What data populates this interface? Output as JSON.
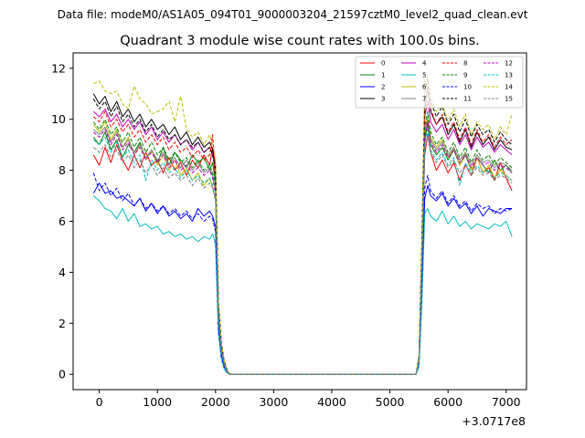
{
  "figure": {
    "suptitle": "Data file: modeM0/AS1A05_094T01_9000003204_21597cztM0_level2_quad_clean.evt"
  },
  "chart_data": {
    "type": "line",
    "title": "Quadrant 3 module wise count rates with 100.0s bins.",
    "xlabel": "",
    "ylabel": "",
    "x_offset_label": "+3.0717e8",
    "xlim": [
      -450,
      7350
    ],
    "ylim": [
      -0.6,
      12.6
    ],
    "xticks": [
      0,
      1000,
      2000,
      3000,
      4000,
      5000,
      6000,
      7000
    ],
    "yticks": [
      0,
      2,
      4,
      6,
      8,
      10,
      12
    ],
    "legend_position": "top-right",
    "x": [
      -100,
      0,
      100,
      200,
      300,
      400,
      500,
      600,
      700,
      800,
      900,
      1000,
      1100,
      1200,
      1300,
      1400,
      1500,
      1600,
      1700,
      1800,
      1900,
      1950,
      2000,
      2050,
      2100,
      2150,
      2200,
      2250,
      2300,
      2500,
      3000,
      3500,
      4000,
      4500,
      5000,
      5450,
      5500,
      5550,
      5600,
      5650,
      5700,
      5800,
      5900,
      6000,
      6100,
      6200,
      6300,
      6400,
      6500,
      6600,
      6700,
      6800,
      6900,
      7000,
      7100
    ],
    "series": [
      {
        "name": "0",
        "color": "#ff0000",
        "dash": "solid",
        "values": [
          8.6,
          8.2,
          8.9,
          8.3,
          9.0,
          8.4,
          8.0,
          8.6,
          8.1,
          8.7,
          8.2,
          8.4,
          7.9,
          8.5,
          8.0,
          8.3,
          7.8,
          8.4,
          8.1,
          8.6,
          8.2,
          8.9,
          7.6,
          2.6,
          1.1,
          0.5,
          0.15,
          0.0,
          0.0,
          0.0,
          0.0,
          0.0,
          0.0,
          0.0,
          0.0,
          0.0,
          0.5,
          4.2,
          8.6,
          9.4,
          8.7,
          8.0,
          8.4,
          7.9,
          8.3,
          7.6,
          8.2,
          7.8,
          8.5,
          7.9,
          8.1,
          7.6,
          8.3,
          7.7,
          7.2
        ]
      },
      {
        "name": "1",
        "color": "#008000",
        "dash": "solid",
        "values": [
          9.3,
          9.0,
          9.5,
          8.8,
          9.2,
          8.5,
          9.0,
          8.7,
          9.1,
          8.4,
          8.8,
          8.3,
          8.9,
          8.2,
          8.7,
          8.4,
          8.1,
          8.6,
          8.3,
          8.5,
          8.0,
          8.3,
          7.5,
          2.3,
          1.0,
          0.4,
          0.1,
          0.0,
          0.0,
          0.0,
          0.0,
          0.0,
          0.0,
          0.0,
          0.0,
          0.0,
          0.6,
          4.5,
          9.2,
          9.8,
          9.0,
          8.6,
          8.9,
          8.4,
          8.8,
          8.2,
          8.6,
          8.0,
          8.5,
          8.2,
          7.9,
          8.4,
          8.0,
          8.2,
          7.9
        ]
      },
      {
        "name": "2",
        "color": "#0000ff",
        "dash": "solid",
        "values": [
          7.1,
          7.5,
          7.1,
          7.2,
          6.9,
          7.0,
          6.8,
          6.6,
          6.9,
          6.4,
          6.7,
          6.3,
          6.6,
          6.2,
          6.4,
          6.1,
          6.3,
          6.0,
          6.5,
          6.2,
          6.4,
          6.2,
          5.8,
          1.9,
          0.8,
          0.3,
          0.1,
          0.0,
          0.0,
          0.0,
          0.0,
          0.0,
          0.0,
          0.0,
          0.0,
          0.0,
          0.4,
          3.2,
          6.9,
          7.4,
          7.0,
          6.8,
          7.1,
          6.6,
          6.9,
          6.5,
          6.7,
          6.3,
          6.6,
          6.2,
          6.5,
          6.4,
          6.3,
          6.5,
          6.5
        ]
      },
      {
        "name": "3",
        "color": "#000000",
        "dash": "solid",
        "values": [
          11.0,
          10.6,
          10.9,
          10.3,
          10.7,
          10.1,
          10.4,
          9.9,
          10.2,
          9.7,
          10.0,
          9.6,
          9.8,
          9.4,
          9.7,
          9.2,
          9.5,
          9.0,
          9.3,
          8.9,
          9.1,
          8.8,
          8.2,
          2.8,
          1.2,
          0.5,
          0.15,
          0.0,
          0.0,
          0.0,
          0.0,
          0.0,
          0.0,
          0.0,
          0.0,
          0.0,
          0.7,
          5.0,
          10.5,
          11.2,
          10.3,
          9.8,
          10.1,
          9.4,
          9.8,
          9.1,
          9.6,
          8.9,
          9.5,
          9.0,
          9.3,
          8.8,
          9.2,
          8.9,
          8.8
        ]
      },
      {
        "name": "4",
        "color": "#bf00bf",
        "dash": "solid",
        "values": [
          10.3,
          10.1,
          10.4,
          9.9,
          10.2,
          9.7,
          10.0,
          9.6,
          9.9,
          9.4,
          9.7,
          9.2,
          9.5,
          9.1,
          9.4,
          9.0,
          9.2,
          8.8,
          9.1,
          8.7,
          8.9,
          8.6,
          8.0,
          2.7,
          1.1,
          0.5,
          0.15,
          0.0,
          0.0,
          0.0,
          0.0,
          0.0,
          0.0,
          0.0,
          0.0,
          0.0,
          0.7,
          4.8,
          10.1,
          10.7,
          9.9,
          9.5,
          9.8,
          9.2,
          9.6,
          9.0,
          9.4,
          8.8,
          9.3,
          8.9,
          9.1,
          8.7,
          9.0,
          8.8,
          8.6
        ]
      },
      {
        "name": "5",
        "color": "#00bfbf",
        "dash": "solid",
        "values": [
          7.0,
          6.8,
          6.5,
          6.4,
          6.1,
          6.5,
          6.0,
          6.3,
          5.8,
          5.9,
          5.7,
          5.8,
          5.5,
          5.6,
          5.4,
          5.5,
          5.3,
          5.4,
          5.2,
          5.4,
          5.3,
          5.5,
          5.1,
          1.6,
          0.6,
          0.2,
          0.05,
          0.0,
          0.0,
          0.0,
          0.0,
          0.0,
          0.0,
          0.0,
          0.0,
          0.0,
          0.3,
          2.8,
          6.3,
          6.5,
          6.2,
          6.0,
          6.4,
          5.9,
          6.2,
          5.8,
          6.0,
          5.7,
          5.9,
          5.8,
          5.7,
          5.9,
          5.8,
          6.0,
          5.4
        ]
      },
      {
        "name": "6",
        "color": "#bfbf00",
        "dash": "solid",
        "values": [
          9.8,
          9.5,
          9.9,
          9.2,
          9.6,
          8.9,
          9.3,
          8.6,
          9.0,
          8.4,
          8.8,
          8.2,
          8.6,
          8.0,
          8.4,
          7.8,
          8.1,
          7.6,
          7.9,
          7.4,
          7.7,
          7.3,
          6.9,
          2.4,
          1.0,
          0.4,
          0.1,
          0.0,
          0.0,
          0.0,
          0.0,
          0.0,
          0.0,
          0.0,
          0.0,
          0.0,
          0.6,
          4.4,
          9.6,
          10.1,
          9.3,
          8.9,
          9.2,
          8.5,
          8.9,
          8.2,
          8.7,
          8.0,
          8.5,
          7.9,
          8.2,
          7.7,
          8.0,
          7.8,
          7.6
        ]
      },
      {
        "name": "7",
        "color": "#808080",
        "dash": "solid",
        "values": [
          9.6,
          9.4,
          9.7,
          9.1,
          9.5,
          8.9,
          9.2,
          8.7,
          9.0,
          8.5,
          8.8,
          8.4,
          8.7,
          8.2,
          8.5,
          8.1,
          8.4,
          8.0,
          8.3,
          7.9,
          8.1,
          7.8,
          7.2,
          2.5,
          1.0,
          0.4,
          0.1,
          0.0,
          0.0,
          0.0,
          0.0,
          0.0,
          0.0,
          0.0,
          0.0,
          0.0,
          0.6,
          4.6,
          9.4,
          10.0,
          9.2,
          8.8,
          9.1,
          8.6,
          8.9,
          8.4,
          8.7,
          8.2,
          8.6,
          8.3,
          8.4,
          8.1,
          8.3,
          8.2,
          8.0
        ]
      },
      {
        "name": "8",
        "color": "#ff0000",
        "dash": "dashed",
        "values": [
          10.1,
          9.9,
          10.3,
          9.7,
          10.0,
          9.5,
          9.8,
          9.3,
          9.6,
          9.1,
          9.4,
          9.0,
          9.3,
          8.8,
          9.1,
          8.7,
          8.9,
          8.5,
          8.8,
          8.4,
          8.6,
          9.4,
          7.8,
          2.7,
          1.1,
          0.5,
          0.15,
          0.0,
          0.0,
          0.0,
          0.0,
          0.0,
          0.0,
          0.0,
          0.0,
          0.0,
          0.7,
          4.9,
          10.2,
          11.3,
          10.4,
          9.8,
          10.2,
          9.5,
          9.9,
          9.2,
          9.7,
          9.0,
          9.6,
          9.1,
          9.4,
          8.9,
          9.3,
          9.0,
          9.2
        ]
      },
      {
        "name": "9",
        "color": "#008000",
        "dash": "dashed",
        "values": [
          9.9,
          9.6,
          10.0,
          9.4,
          9.7,
          9.1,
          9.5,
          8.9,
          9.3,
          8.7,
          9.1,
          8.6,
          8.9,
          8.4,
          8.7,
          8.3,
          8.5,
          8.1,
          8.4,
          8.0,
          8.2,
          7.9,
          7.4,
          2.5,
          1.0,
          0.4,
          0.1,
          0.0,
          0.0,
          0.0,
          0.0,
          0.0,
          0.0,
          0.0,
          0.0,
          0.0,
          0.6,
          4.6,
          9.7,
          10.3,
          9.5,
          9.0,
          9.3,
          8.7,
          9.1,
          8.5,
          8.9,
          8.3,
          8.8,
          8.4,
          8.6,
          8.2,
          8.5,
          8.3,
          8.1
        ]
      },
      {
        "name": "10",
        "color": "#0000ff",
        "dash": "dashed",
        "values": [
          7.9,
          7.2,
          7.5,
          7.0,
          7.3,
          6.8,
          7.1,
          6.6,
          6.9,
          6.5,
          6.7,
          6.4,
          6.6,
          6.3,
          6.5,
          6.2,
          6.4,
          6.1,
          6.3,
          6.0,
          6.2,
          6.1,
          5.6,
          1.8,
          0.7,
          0.3,
          0.08,
          0.0,
          0.0,
          0.0,
          0.0,
          0.0,
          0.0,
          0.0,
          0.0,
          0.0,
          0.4,
          3.4,
          7.3,
          7.8,
          7.2,
          6.9,
          7.2,
          6.7,
          7.0,
          6.6,
          6.8,
          6.4,
          6.7,
          6.5,
          6.6,
          6.3,
          6.5,
          6.4,
          6.5
        ]
      },
      {
        "name": "11",
        "color": "#000000",
        "dash": "dashed",
        "values": [
          10.8,
          10.4,
          10.7,
          10.1,
          10.5,
          9.9,
          10.2,
          9.7,
          10.0,
          9.5,
          9.8,
          9.3,
          9.6,
          9.2,
          9.4,
          9.0,
          9.2,
          8.9,
          9.1,
          8.7,
          8.9,
          8.6,
          8.0,
          2.8,
          1.2,
          0.5,
          0.15,
          0.0,
          0.0,
          0.0,
          0.0,
          0.0,
          0.0,
          0.0,
          0.0,
          0.0,
          0.7,
          5.2,
          11.0,
          11.6,
          10.7,
          10.1,
          10.5,
          9.8,
          10.2,
          9.5,
          10.0,
          9.3,
          9.8,
          9.4,
          9.6,
          9.1,
          9.5,
          9.2,
          9.0
        ]
      },
      {
        "name": "12",
        "color": "#bf00bf",
        "dash": "dashed",
        "values": [
          9.5,
          9.3,
          9.6,
          9.0,
          9.4,
          8.8,
          9.1,
          8.6,
          8.9,
          8.4,
          8.7,
          8.3,
          8.6,
          8.1,
          8.4,
          8.0,
          8.2,
          7.9,
          8.1,
          7.8,
          8.0,
          7.7,
          7.1,
          2.4,
          1.0,
          0.4,
          0.1,
          0.0,
          0.0,
          0.0,
          0.0,
          0.0,
          0.0,
          0.0,
          0.0,
          0.0,
          0.6,
          4.5,
          9.3,
          9.9,
          9.1,
          8.7,
          9.0,
          8.5,
          8.8,
          8.3,
          8.6,
          8.1,
          8.5,
          8.2,
          8.3,
          8.0,
          8.2,
          8.1,
          7.9
        ]
      },
      {
        "name": "13",
        "color": "#00bfbf",
        "dash": "dashed",
        "values": [
          9.2,
          9.0,
          9.3,
          8.7,
          9.1,
          8.5,
          8.8,
          8.3,
          8.6,
          7.6,
          8.4,
          8.0,
          8.3,
          7.9,
          8.1,
          7.7,
          8.0,
          7.6,
          7.8,
          7.5,
          7.7,
          7.4,
          6.9,
          2.3,
          0.9,
          0.4,
          0.1,
          0.0,
          0.0,
          0.0,
          0.0,
          0.0,
          0.0,
          0.0,
          0.0,
          0.0,
          0.5,
          4.3,
          9.0,
          9.6,
          8.8,
          8.4,
          8.7,
          8.2,
          8.5,
          7.4,
          8.3,
          7.9,
          8.2,
          7.9,
          8.0,
          7.7,
          7.9,
          7.8,
          7.6
        ]
      },
      {
        "name": "14",
        "color": "#bfbf00",
        "dash": "dashed",
        "values": [
          11.4,
          11.5,
          11.1,
          11.0,
          11.1,
          10.6,
          10.4,
          11.3,
          10.8,
          10.6,
          10.2,
          10.3,
          10.4,
          10.7,
          9.9,
          10.9,
          9.6,
          9.3,
          9.5,
          9.0,
          9.4,
          9.0,
          8.5,
          2.9,
          1.2,
          0.5,
          0.15,
          0.0,
          0.0,
          0.0,
          0.0,
          0.0,
          0.0,
          0.0,
          0.0,
          0.0,
          0.8,
          5.4,
          11.5,
          11.7,
          10.8,
          10.3,
          10.6,
          9.9,
          10.4,
          9.7,
          10.2,
          9.4,
          9.9,
          9.6,
          9.8,
          9.2,
          9.7,
          9.4,
          10.2
        ]
      },
      {
        "name": "15",
        "color": "#808080",
        "dash": "dashed",
        "values": [
          8.9,
          8.7,
          9.0,
          8.5,
          8.8,
          8.3,
          8.6,
          8.1,
          8.4,
          7.9,
          8.2,
          7.8,
          8.1,
          7.7,
          7.9,
          7.6,
          7.8,
          7.4,
          7.7,
          7.3,
          7.5,
          7.3,
          6.8,
          2.2,
          0.9,
          0.4,
          0.1,
          0.0,
          0.0,
          0.0,
          0.0,
          0.0,
          0.0,
          0.0,
          0.0,
          0.0,
          0.5,
          4.2,
          8.8,
          9.4,
          8.7,
          8.3,
          8.6,
          8.1,
          8.4,
          7.9,
          8.2,
          7.8,
          8.1,
          7.8,
          7.9,
          7.6,
          7.8,
          7.7,
          7.5
        ]
      }
    ]
  }
}
